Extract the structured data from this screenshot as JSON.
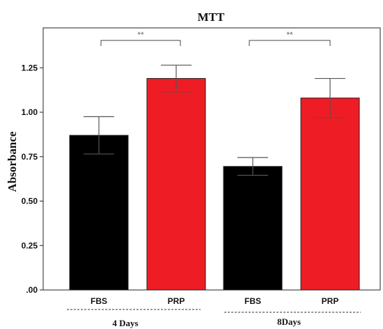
{
  "chart_data": {
    "type": "bar",
    "title": "MTT",
    "ylabel": "Absorbance",
    "xlabel": "",
    "ylim": [
      0,
      1.4
    ],
    "yticks": [
      {
        "value": 0,
        "label": ".00"
      },
      {
        "value": 0.25,
        "label": "0.25"
      },
      {
        "value": 0.5,
        "label": "0.50"
      },
      {
        "value": 0.75,
        "label": "0.75"
      },
      {
        "value": 1.0,
        "label": "1.00"
      },
      {
        "value": 1.25,
        "label": "1.25"
      }
    ],
    "bars": [
      {
        "category": "FBS",
        "group": "4 Days",
        "value": 0.87,
        "error": 0.105,
        "color": "#000000"
      },
      {
        "category": "PRP",
        "group": "4 Days",
        "value": 1.19,
        "error": 0.075,
        "color": "#ee1c25"
      },
      {
        "category": "FBS",
        "group": "8Days",
        "value": 0.695,
        "error": 0.05,
        "color": "#000000"
      },
      {
        "category": "PRP",
        "group": "8Days",
        "value": 1.08,
        "error": 0.11,
        "color": "#ee1c25"
      }
    ],
    "groups": [
      "4 Days",
      "8Days"
    ],
    "significance": [
      {
        "label": "**",
        "group": "4 Days"
      },
      {
        "label": "**",
        "group": "8Days"
      }
    ]
  }
}
